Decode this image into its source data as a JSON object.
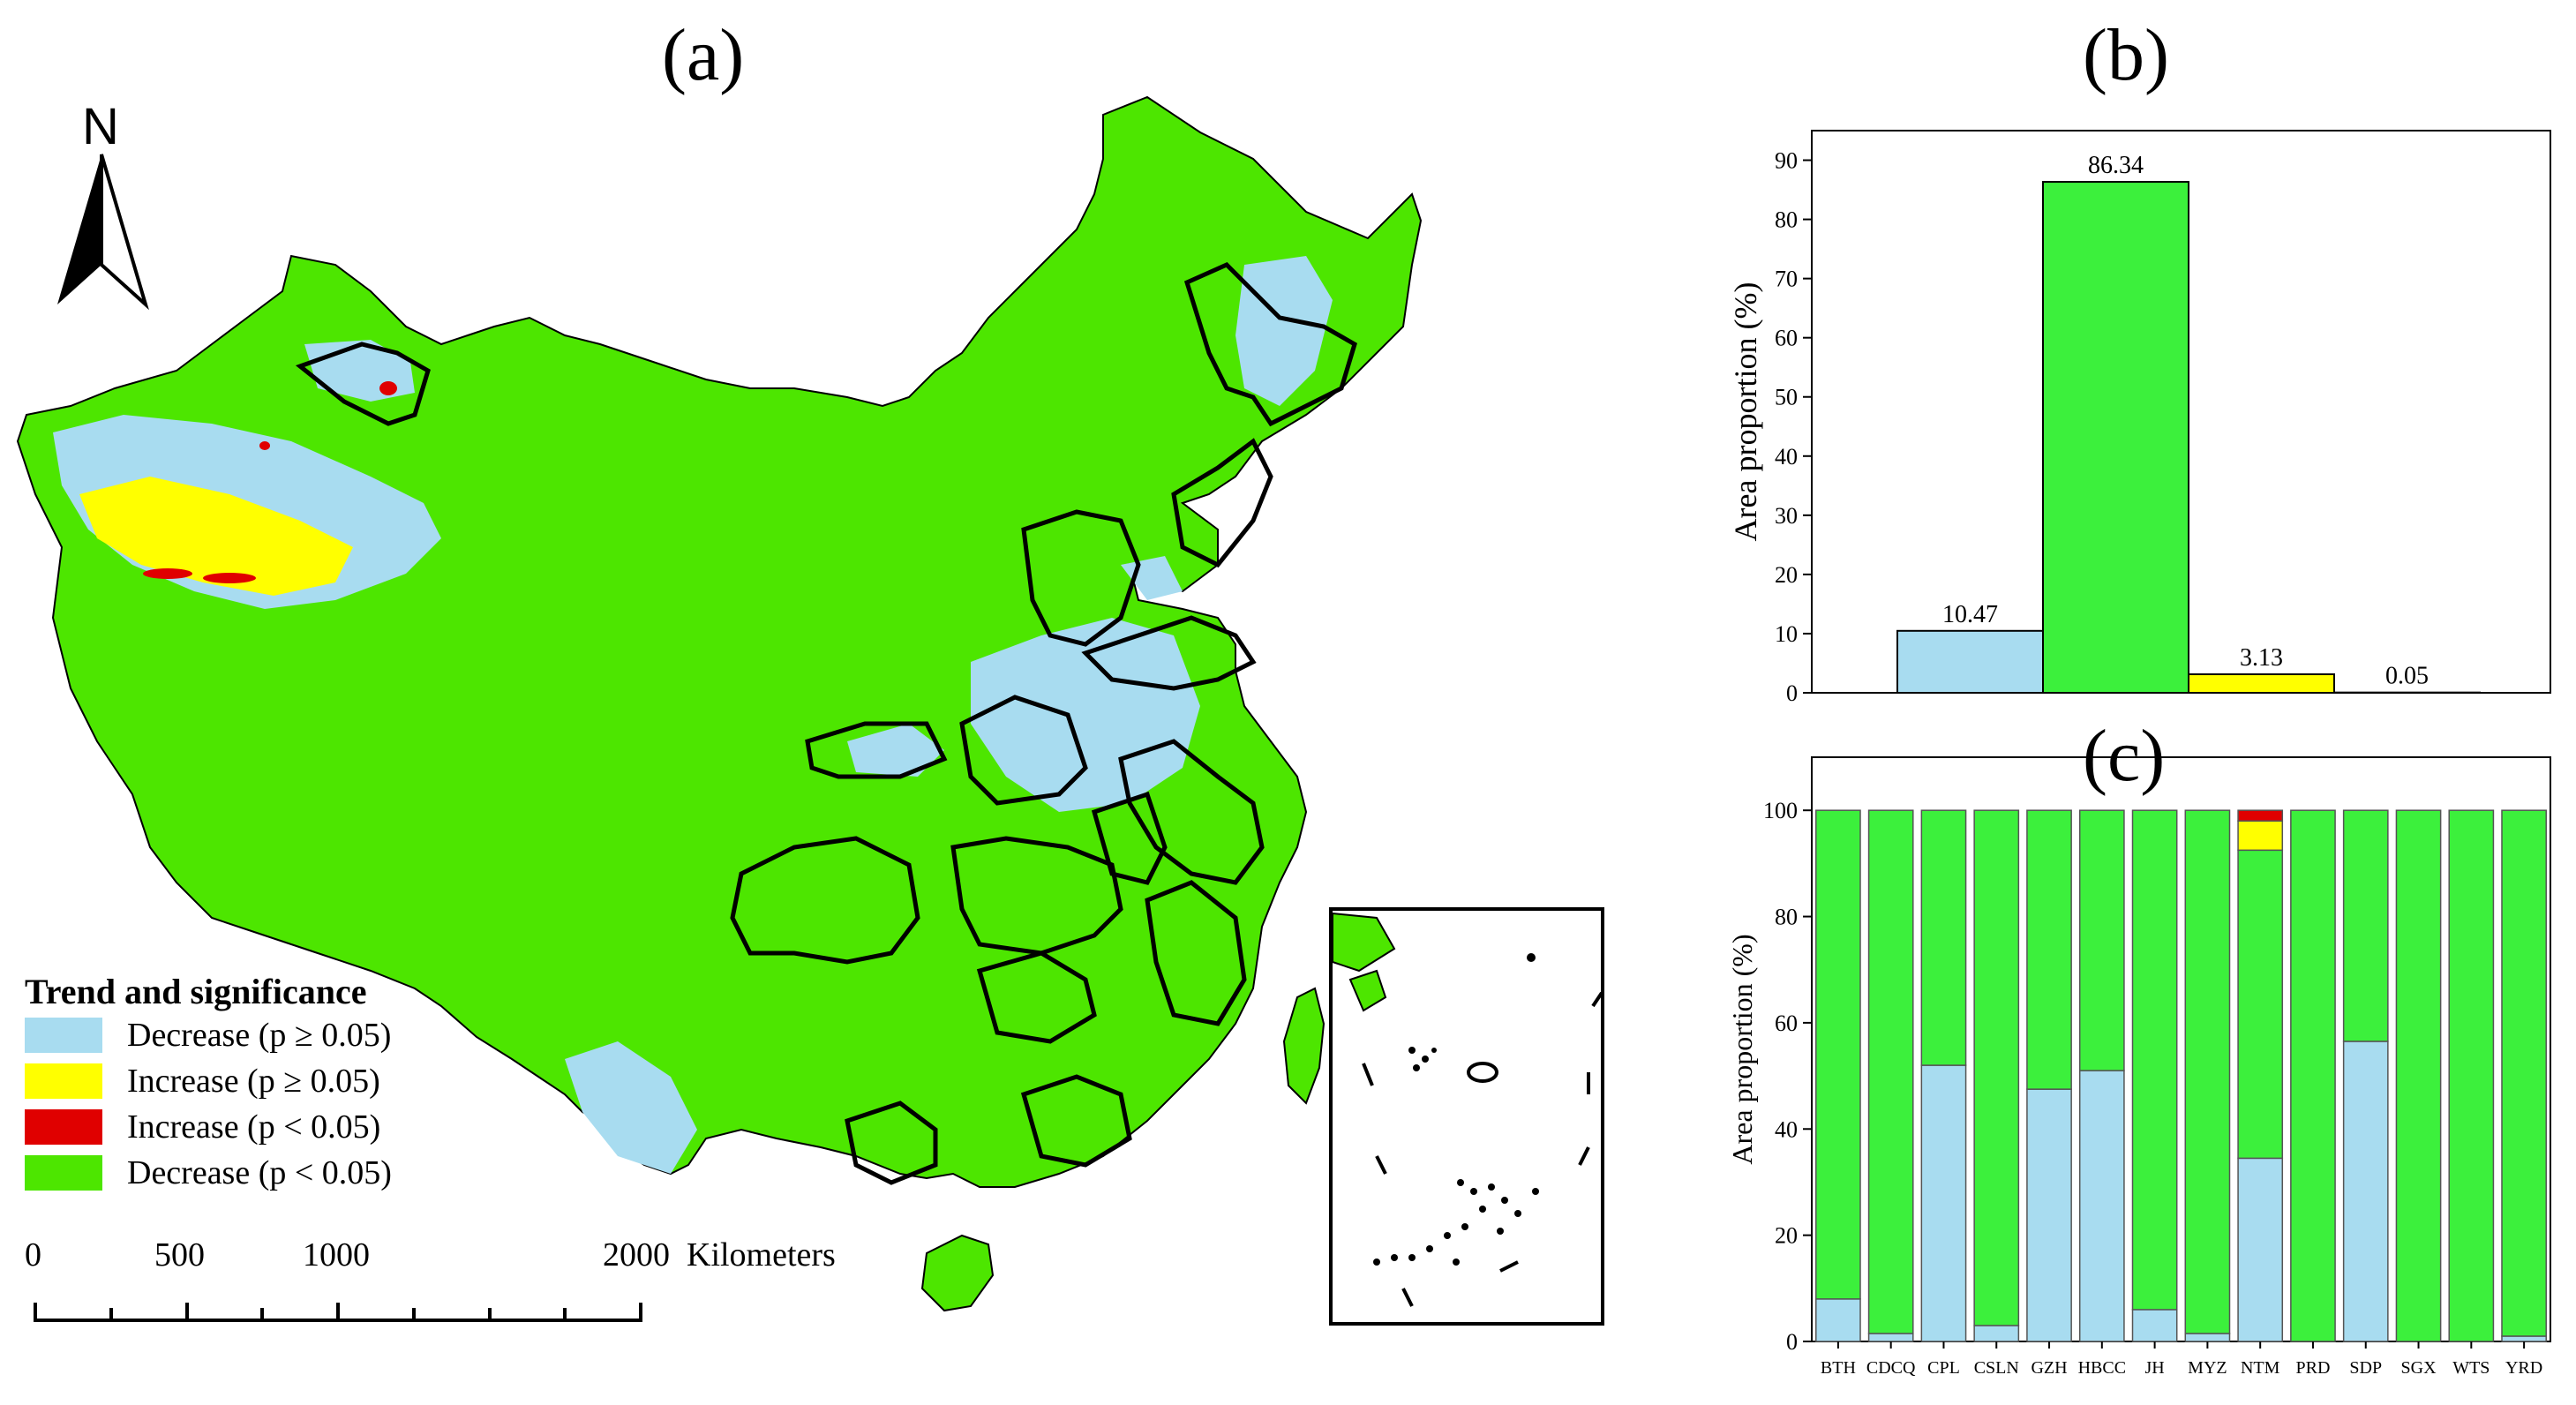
{
  "colors": {
    "decrease_ns": "#a8dcf0",
    "increase_ns": "#ffff00",
    "increase_sig": "#e00000",
    "decrease_sig": "#4de600",
    "bar_green": "#3cf03c"
  },
  "map": {
    "label": "(a)",
    "north_label": "N",
    "legend": {
      "title": "Trend and significance",
      "items": [
        {
          "label": "Decrease (p ≥ 0.05)",
          "color": "#a8dcf0"
        },
        {
          "label": "Increase (p ≥ 0.05)",
          "color": "#ffff00"
        },
        {
          "label": "Increase (p < 0.05)",
          "color": "#e00000"
        },
        {
          "label": "Decrease (p < 0.05)",
          "color": "#4de600"
        }
      ]
    },
    "scale_bar": {
      "ticks": [
        "0",
        "500",
        "1000",
        "2000"
      ],
      "unit": "Kilometers"
    }
  },
  "chart_data": [
    {
      "panel": "(b)",
      "type": "bar",
      "categories": [
        "Decrease (p ≥ 0.05)",
        "Decrease (p < 0.05)",
        "Increase (p ≥ 0.05)",
        "Increase (p < 0.05)"
      ],
      "values": [
        10.47,
        86.34,
        3.13,
        0.05
      ],
      "value_labels": [
        "10.47",
        "86.34",
        "3.13",
        "0.05"
      ],
      "colors": [
        "#a8dcf0",
        "#3cf03c",
        "#ffff00",
        "#e00000"
      ],
      "ylabel": "Area proportion (%)",
      "ylim": [
        0,
        95
      ],
      "yticks": [
        0,
        10,
        20,
        30,
        40,
        50,
        60,
        70,
        80,
        90
      ]
    },
    {
      "panel": "(c)",
      "type": "bar",
      "stacked": true,
      "categories": [
        "BTH",
        "CDCQ",
        "CPL",
        "CSLN",
        "GZH",
        "HBCC",
        "JH",
        "MYZ",
        "NTM",
        "PRD",
        "SDP",
        "SGX",
        "WTS",
        "YRD"
      ],
      "series": [
        {
          "name": "Decrease (p ≥ 0.05)",
          "color": "#a8dcf0",
          "values": [
            8,
            1.5,
            52,
            3,
            47.5,
            51,
            6,
            1.5,
            34.5,
            0,
            56.5,
            0,
            0,
            1
          ]
        },
        {
          "name": "Decrease (p < 0.05)",
          "color": "#3cf03c",
          "values": [
            92,
            98.5,
            48,
            97,
            52.5,
            49,
            94,
            98.5,
            58,
            100,
            43.5,
            100,
            100,
            99
          ]
        },
        {
          "name": "Increase (p ≥ 0.05)",
          "color": "#ffff00",
          "values": [
            0,
            0,
            0,
            0,
            0,
            0,
            0,
            0,
            5.5,
            0,
            0,
            0,
            0,
            0
          ]
        },
        {
          "name": "Increase (p < 0.05)",
          "color": "#e00000",
          "values": [
            0,
            0,
            0,
            0,
            0,
            0,
            0,
            0,
            2,
            0,
            0,
            0,
            0,
            0
          ]
        }
      ],
      "ylabel": "Area proportion (%)",
      "ylim": [
        0,
        110
      ],
      "yticks": [
        0,
        20,
        40,
        60,
        80,
        100
      ]
    }
  ]
}
